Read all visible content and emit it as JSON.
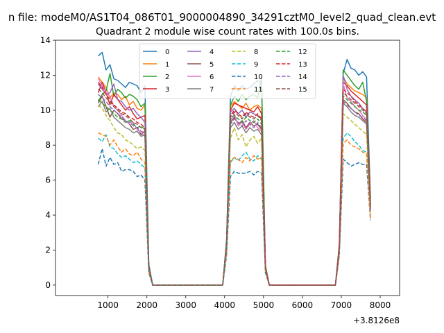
{
  "figure": {
    "suptitle": "n file: modeM0/AS1T04_086T01_9000004890_34291cztM0_level2_quad_clean.evt",
    "offset_label": "+3.8126e8"
  },
  "chart_data": {
    "type": "line",
    "title": "Quadrant 2 module wise count rates with 100.0s bins.",
    "xlabel": "",
    "ylabel": "",
    "x_offset": 381260000,
    "xlim": [
      -350,
      8500
    ],
    "ylim": [
      -0.6,
      14.0
    ],
    "xticks": [
      1000,
      2000,
      3000,
      4000,
      5000,
      6000,
      7000,
      8000
    ],
    "xtick_labels": [
      "1000",
      "2000",
      "3000",
      "4000",
      "5000",
      "6000",
      "7000",
      "8000"
    ],
    "yticks": [
      0,
      2,
      4,
      6,
      8,
      10,
      12,
      14
    ],
    "ytick_labels": [
      "0",
      "2",
      "4",
      "6",
      "8",
      "10",
      "12",
      "14"
    ],
    "grid": false,
    "legend_position": "top-center",
    "x": [
      750,
      850,
      950,
      1050,
      1150,
      1250,
      1350,
      1450,
      1550,
      1650,
      1750,
      1850,
      1950,
      2050,
      2150,
      2250,
      2350,
      2450,
      2550,
      2650,
      2750,
      2850,
      2950,
      3050,
      3150,
      3250,
      3350,
      3450,
      3550,
      3650,
      3750,
      3850,
      3950,
      4050,
      4150,
      4250,
      4350,
      4450,
      4550,
      4650,
      4750,
      4850,
      4950,
      5050,
      5150,
      5250,
      5350,
      5450,
      5550,
      5650,
      5750,
      5850,
      5950,
      6050,
      6150,
      6250,
      6350,
      6450,
      6550,
      6650,
      6750,
      6850,
      6950,
      7050,
      7150,
      7250,
      7350,
      7450,
      7550,
      7650,
      7750
    ],
    "series": [
      {
        "name": "0",
        "color": "#1f77b4",
        "dash": false,
        "values": [
          13.1,
          13.3,
          12.3,
          12.6,
          11.8,
          11.7,
          11.5,
          11.3,
          11.6,
          11.5,
          11.4,
          11.0,
          11.4,
          1.2,
          0,
          0,
          0,
          0,
          0,
          0,
          0,
          0,
          0,
          0,
          0,
          0,
          0,
          0,
          0,
          0,
          0,
          0,
          0,
          2.6,
          10.8,
          11.4,
          11.1,
          11.4,
          11.2,
          11.3,
          11.5,
          11.7,
          11.5,
          1.1,
          0,
          0,
          0,
          0,
          0,
          0,
          0,
          0,
          0,
          0,
          0,
          0,
          0,
          0,
          0,
          0,
          0,
          0,
          2.3,
          12.1,
          12.9,
          12.4,
          12.3,
          12.0,
          12.2,
          11.9,
          5.0
        ]
      },
      {
        "name": "1",
        "color": "#ff7f0e",
        "dash": false,
        "values": [
          11.9,
          11.6,
          11.3,
          10.7,
          11.0,
          10.9,
          10.6,
          10.8,
          10.3,
          10.5,
          10.1,
          10.0,
          10.3,
          1.1,
          0,
          0,
          0,
          0,
          0,
          0,
          0,
          0,
          0,
          0,
          0,
          0,
          0,
          0,
          0,
          0,
          0,
          0,
          0,
          2.4,
          10.2,
          10.5,
          10.3,
          10.1,
          10.4,
          10.0,
          10.2,
          10.3,
          10.1,
          1.0,
          0,
          0,
          0,
          0,
          0,
          0,
          0,
          0,
          0,
          0,
          0,
          0,
          0,
          0,
          0,
          0,
          0,
          0,
          2.2,
          11.9,
          11.5,
          11.3,
          11.1,
          11.0,
          10.9,
          10.7,
          4.6
        ]
      },
      {
        "name": "2",
        "color": "#2ca02c",
        "dash": false,
        "values": [
          10.5,
          10.9,
          11.1,
          12.1,
          10.8,
          11.2,
          11.0,
          10.7,
          10.9,
          10.8,
          10.6,
          10.2,
          10.4,
          1.1,
          0,
          0,
          0,
          0,
          0,
          0,
          0,
          0,
          0,
          0,
          0,
          0,
          0,
          0,
          0,
          0,
          0,
          0,
          0,
          2.5,
          10.3,
          10.8,
          10.5,
          10.9,
          10.6,
          10.8,
          10.9,
          10.7,
          11.9,
          1.1,
          0,
          0,
          0,
          0,
          0,
          0,
          0,
          0,
          0,
          0,
          0,
          0,
          0,
          0,
          0,
          0,
          0,
          0,
          2.3,
          12.3,
          12.0,
          11.7,
          11.4,
          11.2,
          11.6,
          10.5,
          4.8
        ]
      },
      {
        "name": "3",
        "color": "#d62728",
        "dash": false,
        "values": [
          11.0,
          11.6,
          11.0,
          10.3,
          10.9,
          10.6,
          10.3,
          10.0,
          10.2,
          9.8,
          9.5,
          9.6,
          9.7,
          1.0,
          0,
          0,
          0,
          0,
          0,
          0,
          0,
          0,
          0,
          0,
          0,
          0,
          0,
          0,
          0,
          0,
          0,
          0,
          0,
          2.4,
          10.0,
          10.4,
          10.3,
          10.2,
          10.1,
          10.0,
          9.9,
          10.2,
          9.8,
          1.0,
          0,
          0,
          0,
          0,
          0,
          0,
          0,
          0,
          0,
          0,
          0,
          0,
          0,
          0,
          0,
          0,
          0,
          0,
          2.2,
          11.6,
          11.4,
          11.1,
          10.9,
          10.7,
          10.5,
          10.3,
          4.6
        ]
      },
      {
        "name": "4",
        "color": "#9467bd",
        "dash": false,
        "values": [
          11.5,
          11.2,
          10.9,
          11.0,
          11.5,
          10.6,
          10.5,
          10.2,
          10.0,
          10.1,
          9.8,
          9.6,
          9.3,
          1.0,
          0,
          0,
          0,
          0,
          0,
          0,
          0,
          0,
          0,
          0,
          0,
          0,
          0,
          0,
          0,
          0,
          0,
          0,
          0,
          2.4,
          9.9,
          10.1,
          9.8,
          10.0,
          9.6,
          9.9,
          9.8,
          9.7,
          9.5,
          1.0,
          0,
          0,
          0,
          0,
          0,
          0,
          0,
          0,
          0,
          0,
          0,
          0,
          0,
          0,
          0,
          0,
          0,
          0,
          2.2,
          12.0,
          11.2,
          10.8,
          10.6,
          10.4,
          10.1,
          9.9,
          4.5
        ]
      },
      {
        "name": "5",
        "color": "#8c564b",
        "dash": false,
        "values": [
          10.4,
          10.8,
          10.2,
          9.6,
          10.0,
          9.8,
          9.5,
          9.4,
          9.2,
          8.9,
          9.0,
          8.6,
          8.8,
          1.0,
          0,
          0,
          0,
          0,
          0,
          0,
          0,
          0,
          0,
          0,
          0,
          0,
          0,
          0,
          0,
          0,
          0,
          0,
          0,
          2.3,
          9.3,
          9.6,
          9.2,
          9.4,
          9.0,
          9.3,
          9.1,
          9.2,
          8.9,
          1.0,
          0,
          0,
          0,
          0,
          0,
          0,
          0,
          0,
          0,
          0,
          0,
          0,
          0,
          0,
          0,
          0,
          0,
          0,
          2.1,
          10.6,
          10.4,
          10.1,
          9.9,
          9.8,
          9.5,
          9.3,
          4.3
        ]
      },
      {
        "name": "6",
        "color": "#e377c2",
        "dash": false,
        "values": [
          11.8,
          11.4,
          11.0,
          10.8,
          10.2,
          10.0,
          9.7,
          9.4,
          9.2,
          9.3,
          8.9,
          8.7,
          8.5,
          1.0,
          0,
          0,
          0,
          0,
          0,
          0,
          0,
          0,
          0,
          0,
          0,
          0,
          0,
          0,
          0,
          0,
          0,
          0,
          0,
          2.3,
          9.4,
          9.8,
          9.1,
          9.3,
          8.9,
          9.2,
          9.4,
          9.0,
          8.8,
          1.0,
          0,
          0,
          0,
          0,
          0,
          0,
          0,
          0,
          0,
          0,
          0,
          0,
          0,
          0,
          0,
          0,
          0,
          0,
          2.1,
          11.5,
          10.7,
          10.5,
          10.2,
          10.0,
          9.7,
          9.4,
          4.3
        ]
      },
      {
        "name": "7",
        "color": "#7f7f7f",
        "dash": false,
        "values": [
          10.2,
          10.5,
          9.9,
          10.1,
          9.6,
          9.4,
          9.2,
          9.0,
          8.9,
          8.7,
          8.8,
          8.5,
          8.6,
          1.0,
          0,
          0,
          0,
          0,
          0,
          0,
          0,
          0,
          0,
          0,
          0,
          0,
          0,
          0,
          0,
          0,
          0,
          0,
          0,
          2.2,
          9.0,
          9.3,
          8.9,
          9.1,
          8.7,
          9.0,
          8.8,
          8.9,
          8.6,
          1.0,
          0,
          0,
          0,
          0,
          0,
          0,
          0,
          0,
          0,
          0,
          0,
          0,
          0,
          0,
          0,
          0,
          0,
          0,
          2.1,
          10.4,
          10.2,
          9.9,
          9.7,
          9.6,
          9.4,
          9.2,
          4.2
        ]
      },
      {
        "name": "8",
        "color": "#bcbd22",
        "dash": true,
        "values": [
          10.3,
          10.1,
          9.7,
          9.4,
          9.0,
          8.7,
          8.6,
          8.3,
          8.2,
          8.0,
          7.8,
          7.9,
          7.7,
          0.9,
          0,
          0,
          0,
          0,
          0,
          0,
          0,
          0,
          0,
          0,
          0,
          0,
          0,
          0,
          0,
          0,
          0,
          0,
          0,
          2.1,
          8.4,
          9.0,
          8.3,
          8.6,
          7.9,
          8.3,
          8.5,
          8.1,
          8.4,
          0.9,
          0,
          0,
          0,
          0,
          0,
          0,
          0,
          0,
          0,
          0,
          0,
          0,
          0,
          0,
          0,
          0,
          0,
          0,
          2.0,
          9.8,
          9.6,
          9.4,
          9.2,
          9.0,
          8.8,
          8.6,
          4.0
        ]
      },
      {
        "name": "9",
        "color": "#17becf",
        "dash": true,
        "values": [
          8.4,
          8.2,
          8.6,
          7.9,
          7.8,
          7.5,
          7.3,
          7.4,
          7.2,
          7.0,
          7.1,
          6.9,
          6.7,
          0.8,
          0,
          0,
          0,
          0,
          0,
          0,
          0,
          0,
          0,
          0,
          0,
          0,
          0,
          0,
          0,
          0,
          0,
          0,
          0,
          1.9,
          7.0,
          7.3,
          7.1,
          7.4,
          7.6,
          7.2,
          7.1,
          7.4,
          7.2,
          0.8,
          0,
          0,
          0,
          0,
          0,
          0,
          0,
          0,
          0,
          0,
          0,
          0,
          0,
          0,
          0,
          0,
          0,
          0,
          1.8,
          8.4,
          8.7,
          8.5,
          8.2,
          8.0,
          7.7,
          7.6,
          3.8
        ]
      },
      {
        "name": "10",
        "color": "#1f77b4",
        "dash": true,
        "values": [
          6.9,
          7.8,
          6.8,
          7.3,
          6.9,
          7.0,
          6.5,
          6.6,
          6.6,
          6.5,
          6.2,
          6.3,
          6.0,
          0.7,
          0,
          0,
          0,
          0,
          0,
          0,
          0,
          0,
          0,
          0,
          0,
          0,
          0,
          0,
          0,
          0,
          0,
          0,
          0,
          1.7,
          6.2,
          6.5,
          6.4,
          6.4,
          6.4,
          6.5,
          6.3,
          6.5,
          6.4,
          0.7,
          0,
          0,
          0,
          0,
          0,
          0,
          0,
          0,
          0,
          0,
          0,
          0,
          0,
          0,
          0,
          0,
          0,
          0,
          1.7,
          7.2,
          7.0,
          6.8,
          6.9,
          7.0,
          6.9,
          6.9,
          3.7
        ]
      },
      {
        "name": "11",
        "color": "#ff7f0e",
        "dash": true,
        "values": [
          8.7,
          8.6,
          8.5,
          8.0,
          8.3,
          7.9,
          7.6,
          7.8,
          7.5,
          7.4,
          7.6,
          7.2,
          7.0,
          0.8,
          0,
          0,
          0,
          0,
          0,
          0,
          0,
          0,
          0,
          0,
          0,
          0,
          0,
          0,
          0,
          0,
          0,
          0,
          0,
          1.9,
          7.1,
          7.3,
          7.2,
          7.0,
          7.3,
          7.1,
          7.4,
          7.2,
          7.3,
          0.8,
          0,
          0,
          0,
          0,
          0,
          0,
          0,
          0,
          0,
          0,
          0,
          0,
          0,
          0,
          0,
          0,
          0,
          0,
          1.8,
          8.1,
          8.3,
          8.0,
          7.9,
          7.8,
          7.6,
          7.5,
          3.8
        ]
      },
      {
        "name": "12",
        "color": "#2ca02c",
        "dash": true,
        "values": [
          10.6,
          10.4,
          10.2,
          10.0,
          9.8,
          9.6,
          9.5,
          9.3,
          9.4,
          9.2,
          9.0,
          9.1,
          8.9,
          1.0,
          0,
          0,
          0,
          0,
          0,
          0,
          0,
          0,
          0,
          0,
          0,
          0,
          0,
          0,
          0,
          0,
          0,
          0,
          0,
          2.3,
          9.5,
          9.7,
          9.5,
          9.3,
          9.6,
          9.4,
          9.3,
          9.5,
          9.2,
          1.0,
          0,
          0,
          0,
          0,
          0,
          0,
          0,
          0,
          0,
          0,
          0,
          0,
          0,
          0,
          0,
          0,
          0,
          0,
          2.1,
          10.8,
          10.6,
          10.4,
          10.2,
          10.0,
          9.9,
          9.7,
          4.4
        ]
      },
      {
        "name": "13",
        "color": "#d62728",
        "dash": true,
        "values": [
          11.6,
          11.3,
          10.9,
          10.6,
          10.3,
          10.1,
          9.9,
          9.8,
          9.6,
          9.5,
          9.3,
          9.2,
          9.0,
          1.0,
          0,
          0,
          0,
          0,
          0,
          0,
          0,
          0,
          0,
          0,
          0,
          0,
          0,
          0,
          0,
          0,
          0,
          0,
          0,
          2.4,
          9.7,
          10.0,
          9.8,
          9.6,
          9.9,
          9.7,
          9.6,
          9.8,
          9.5,
          1.0,
          0,
          0,
          0,
          0,
          0,
          0,
          0,
          0,
          0,
          0,
          0,
          0,
          0,
          0,
          0,
          0,
          0,
          0,
          2.2,
          11.2,
          11.0,
          10.8,
          10.5,
          10.3,
          10.1,
          9.9,
          4.5
        ]
      },
      {
        "name": "14",
        "color": "#9467bd",
        "dash": true,
        "values": [
          10.9,
          10.7,
          10.5,
          10.2,
          10.0,
          9.8,
          9.6,
          9.4,
          9.3,
          9.1,
          9.0,
          8.8,
          8.7,
          1.0,
          0,
          0,
          0,
          0,
          0,
          0,
          0,
          0,
          0,
          0,
          0,
          0,
          0,
          0,
          0,
          0,
          0,
          0,
          0,
          2.3,
          9.2,
          9.5,
          9.3,
          9.1,
          9.4,
          9.2,
          9.0,
          9.3,
          9.0,
          1.0,
          0,
          0,
          0,
          0,
          0,
          0,
          0,
          0,
          0,
          0,
          0,
          0,
          0,
          0,
          0,
          0,
          0,
          0,
          2.1,
          10.5,
          10.3,
          10.1,
          9.9,
          9.7,
          9.6,
          9.4,
          4.3
        ]
      },
      {
        "name": "15",
        "color": "#8c564b",
        "dash": true,
        "values": [
          11.2,
          11.0,
          10.7,
          10.5,
          10.2,
          10.0,
          9.8,
          9.7,
          9.5,
          9.3,
          9.2,
          9.0,
          8.9,
          1.0,
          0,
          0,
          0,
          0,
          0,
          0,
          0,
          0,
          0,
          0,
          0,
          0,
          0,
          0,
          0,
          0,
          0,
          0,
          0,
          2.4,
          9.6,
          9.9,
          9.7,
          9.5,
          9.8,
          9.6,
          9.5,
          9.7,
          9.4,
          1.0,
          0,
          0,
          0,
          0,
          0,
          0,
          0,
          0,
          0,
          0,
          0,
          0,
          0,
          0,
          0,
          0,
          0,
          0,
          2.2,
          11.0,
          10.8,
          10.6,
          10.4,
          10.2,
          10.0,
          9.8,
          4.4
        ]
      }
    ]
  }
}
